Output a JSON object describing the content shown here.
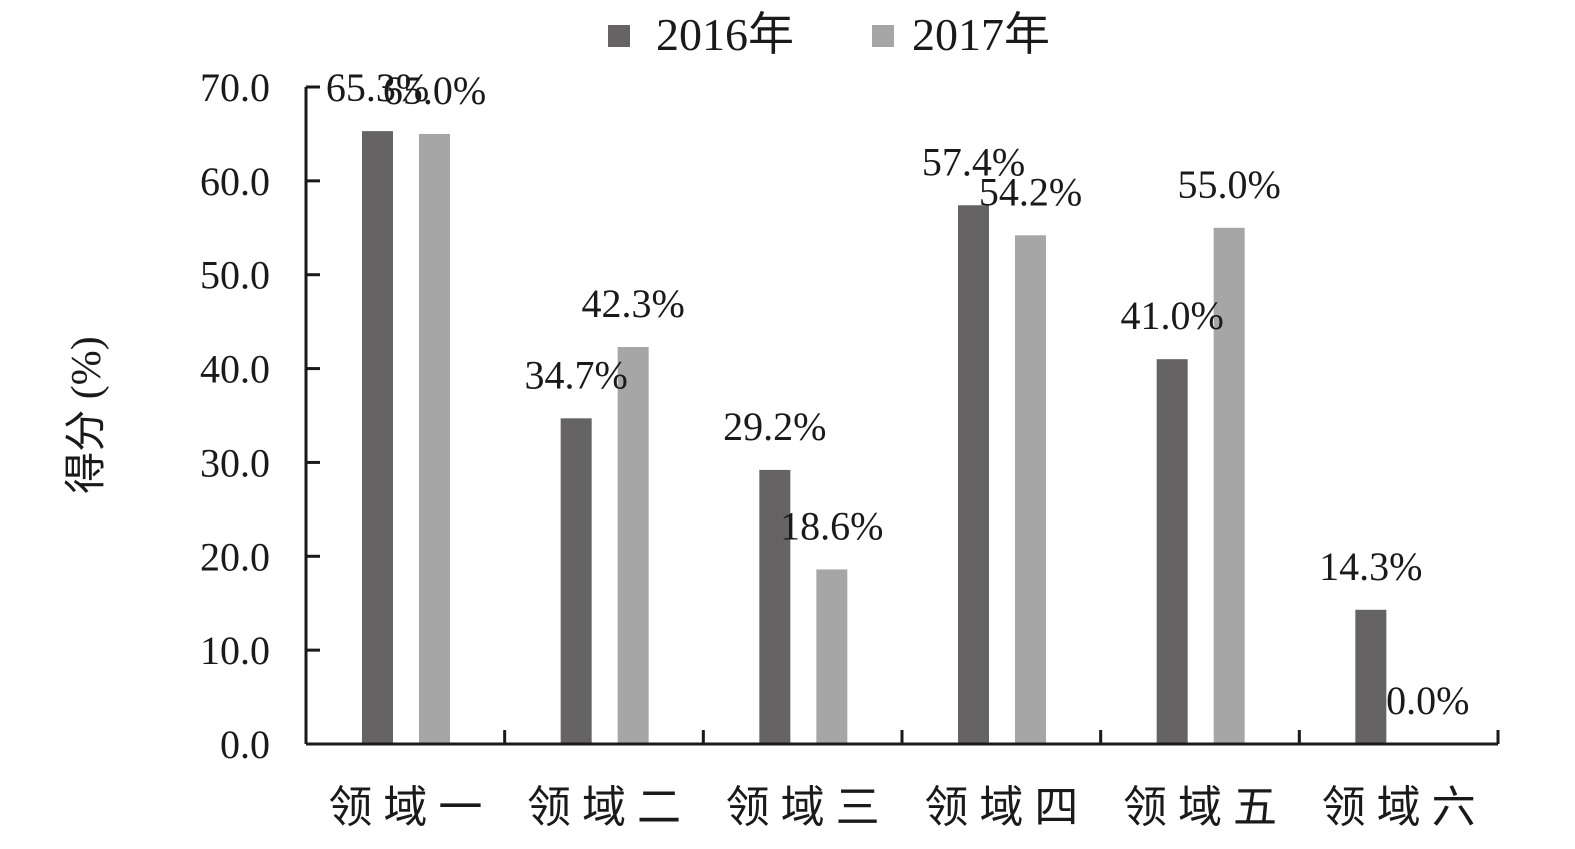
{
  "chart_data": {
    "type": "bar",
    "title": "",
    "xlabel": "",
    "ylabel": "得分 (%)",
    "ylim": [
      0,
      70
    ],
    "yticks": [
      0,
      10,
      20,
      30,
      40,
      50,
      60,
      70
    ],
    "ytick_labels": [
      "0.0",
      "10.0",
      "20.0",
      "30.0",
      "40.0",
      "50.0",
      "60.0",
      "70.0"
    ],
    "grid": false,
    "legend_position": "top-center",
    "categories": [
      "领 域 一",
      "领 域 二",
      "领 域 三",
      "领 域 四",
      "领 域 五",
      "领 域 六"
    ],
    "series": [
      {
        "name": "2016年",
        "color": "#656364",
        "values": [
          65.3,
          34.7,
          29.2,
          57.4,
          41.0,
          14.3
        ],
        "labels": [
          "65.3%",
          "34.7%",
          "29.2%",
          "57.4%",
          "41.0%",
          "14.3%"
        ]
      },
      {
        "name": "2017年",
        "color": "#a6a6a6",
        "values": [
          65.0,
          42.3,
          18.6,
          54.2,
          55.0,
          0.0
        ],
        "labels": [
          "65.0%",
          "42.3%",
          "18.6%",
          "54.2%",
          "55.0%",
          "0.0%"
        ]
      }
    ]
  }
}
